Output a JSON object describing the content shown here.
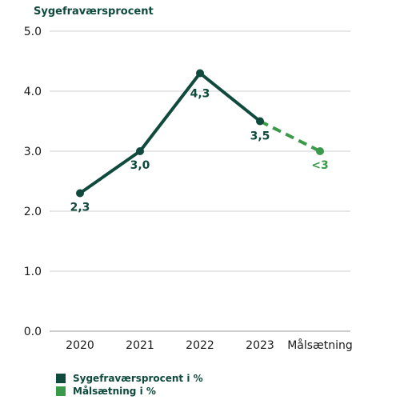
{
  "chart_data": {
    "type": "line",
    "title": "Sygefraværsprocent",
    "categories": [
      "2020",
      "2021",
      "2022",
      "2023",
      "Målsætning"
    ],
    "ylim": [
      0,
      5
    ],
    "yticks": [
      "0.0",
      "1.0",
      "2.0",
      "3.0",
      "4.0",
      "5.0"
    ],
    "grid": true,
    "legend_position": "bottom-left",
    "series": [
      {
        "name": "Sygefraværsprocent i %",
        "color": "#0f4a3c",
        "style": "solid",
        "points": [
          {
            "x": "2020",
            "y": 2.3,
            "label": "2,3"
          },
          {
            "x": "2021",
            "y": 3.0,
            "label": "3,0"
          },
          {
            "x": "2022",
            "y": 4.3,
            "label": "4,3"
          },
          {
            "x": "2023",
            "y": 3.5,
            "label": "3,5"
          }
        ]
      },
      {
        "name": "Målsætning i %",
        "color": "#3a9a4a",
        "style": "dashed",
        "points": [
          {
            "x": "2023",
            "y": 3.5,
            "label": ""
          },
          {
            "x": "Målsætning",
            "y": 3.0,
            "label": "<3"
          }
        ]
      }
    ]
  }
}
